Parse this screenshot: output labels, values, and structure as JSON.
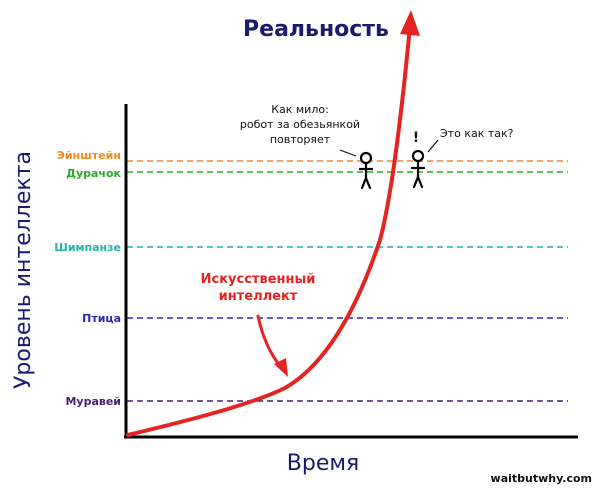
{
  "title": "Реальность",
  "y_axis_label": "Уровень интеллекта",
  "x_axis_label": "Время",
  "watermark": "waitbutwhy.com",
  "levels": [
    {
      "id": "einstein",
      "label": "Эйнштейн",
      "color": "#f08a24"
    },
    {
      "id": "dunce",
      "label": "Дурачок",
      "color": "#2aa829"
    },
    {
      "id": "chimp",
      "label": "Шимпанзе",
      "color": "#27b3a8"
    },
    {
      "id": "bird",
      "label": "Птица",
      "color": "#2a2ab0"
    },
    {
      "id": "ant",
      "label": "Муравей",
      "color": "#4a1f6e"
    }
  ],
  "ai_curve": {
    "label_line1": "Искусственный",
    "label_line2": "интеллект",
    "color": "#e52320"
  },
  "speech": {
    "left_line1": "Как мило:",
    "left_line2": "робот за обезьянкой",
    "left_line3": "повторяет",
    "right_exclaim": "!",
    "right_text": "Это как так?"
  }
}
